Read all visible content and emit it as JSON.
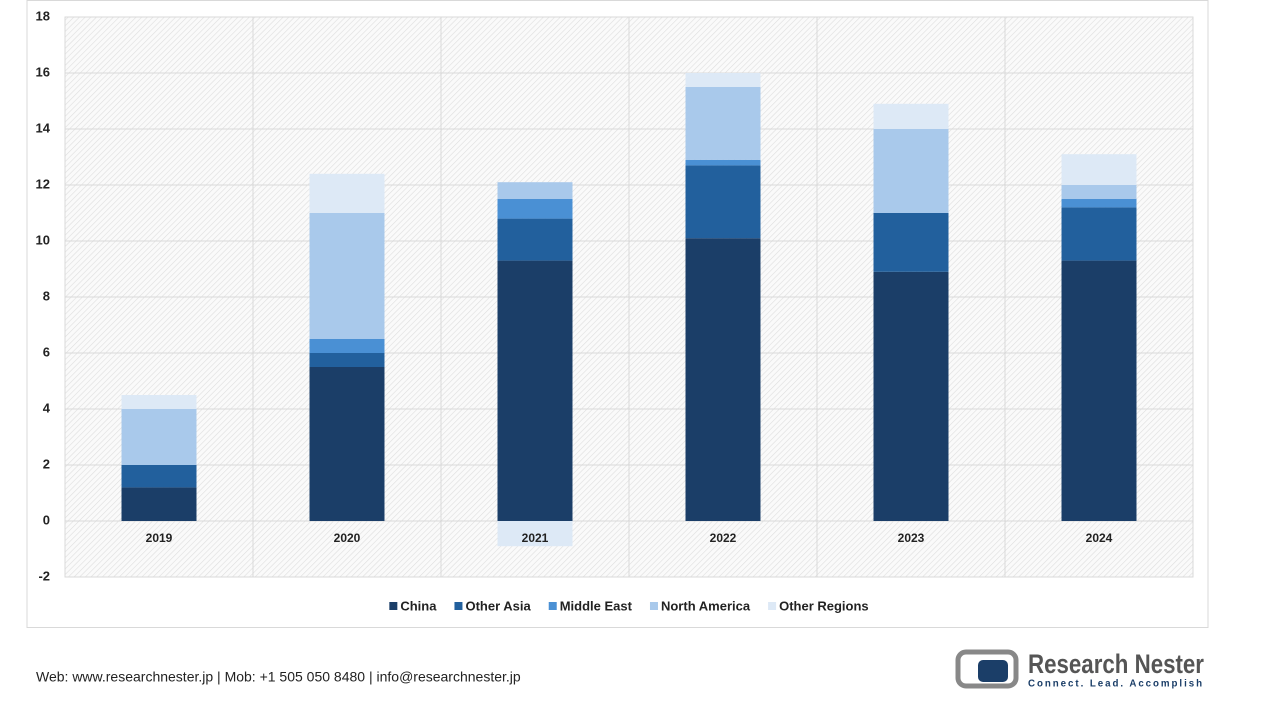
{
  "chart_data": {
    "type": "stacked-bar",
    "categories": [
      "2019",
      "2020",
      "2021",
      "2022",
      "2023",
      "2024"
    ],
    "series": [
      {
        "name": "China",
        "color": "#1b3e68",
        "values": [
          1.2,
          5.5,
          9.3,
          10.1,
          8.9,
          9.3
        ]
      },
      {
        "name": "Other Asia",
        "color": "#22609d",
        "values": [
          0.8,
          0.5,
          1.5,
          2.6,
          2.1,
          1.9
        ]
      },
      {
        "name": "Middle East",
        "color": "#4a90d4",
        "values": [
          0,
          0.5,
          0.7,
          0.2,
          0,
          0.3
        ]
      },
      {
        "name": "North America",
        "color": "#a9c9eb",
        "values": [
          2.0,
          4.5,
          0.6,
          2.6,
          3.0,
          0.5
        ]
      },
      {
        "name": "Other Regions",
        "color": "#dde9f6",
        "values": [
          0.5,
          1.4,
          -0.9,
          0.5,
          0.9,
          1.1
        ]
      }
    ],
    "ylim": [
      -2,
      18
    ],
    "yticks": [
      -2,
      0,
      2,
      4,
      6,
      8,
      10,
      12,
      14,
      16,
      18
    ],
    "grid": true,
    "legend": "bottom"
  },
  "footer": "Web: www.researchnester.jp | Mob: +1 505 050 8480 | info@researchnester.jp",
  "logo": {
    "name": "Research Nester",
    "tagline": "Connect. Lead. Accomplish"
  }
}
